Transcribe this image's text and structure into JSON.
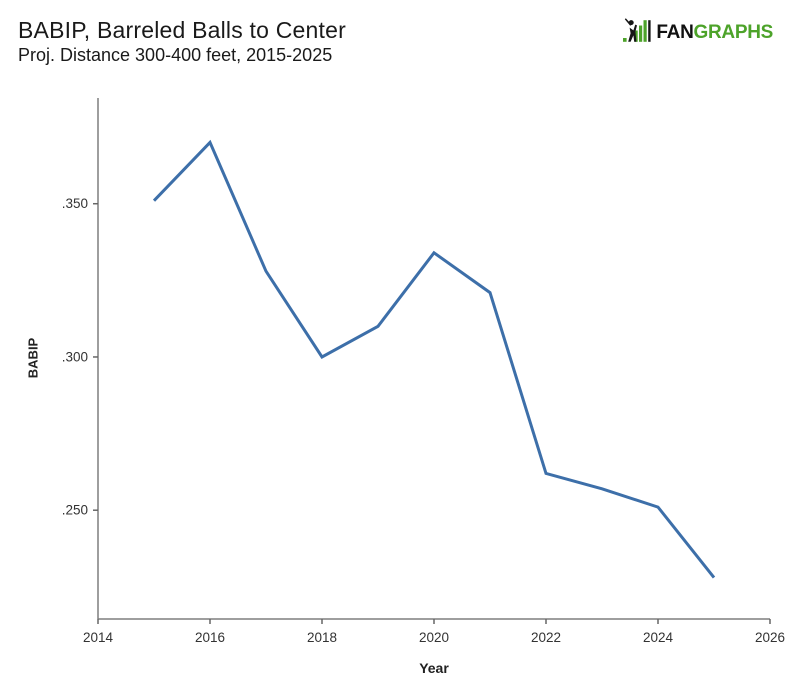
{
  "header": {
    "title": "BABIP, Barreled Balls to Center",
    "subtitle": "Proj. Distance 300-400 feet, 2015-2025"
  },
  "logo": {
    "fan": "FAN",
    "graphs": "GRAPHS",
    "green": "#4da32a",
    "black": "#111111"
  },
  "chart_data": {
    "type": "line",
    "title": "BABIP, Barreled Balls to Center",
    "subtitle": "Proj. Distance 300-400 feet, 2015-2025",
    "xlabel": "Year",
    "ylabel": "BABIP",
    "x": [
      2015,
      2016,
      2017,
      2018,
      2019,
      2020,
      2021,
      2022,
      2023,
      2024,
      2025
    ],
    "y": [
      0.351,
      0.37,
      0.328,
      0.3,
      0.31,
      0.334,
      0.321,
      0.262,
      0.257,
      0.251,
      0.228
    ],
    "xlim": [
      2014,
      2026
    ],
    "ylim": [
      0.2145,
      0.3845
    ],
    "x_ticks": [
      2014,
      2016,
      2018,
      2020,
      2022,
      2024,
      2026
    ],
    "y_ticks": [
      0.25,
      0.3,
      0.35
    ],
    "y_tick_labels": [
      ".250",
      ".300",
      ".350"
    ],
    "grid": false,
    "legend": "none",
    "line_color": "#3d6fa9",
    "line_width": 3,
    "axis_color": "#7f7f7f",
    "tick_color": "#666666",
    "tick_label_color": "#333333"
  }
}
